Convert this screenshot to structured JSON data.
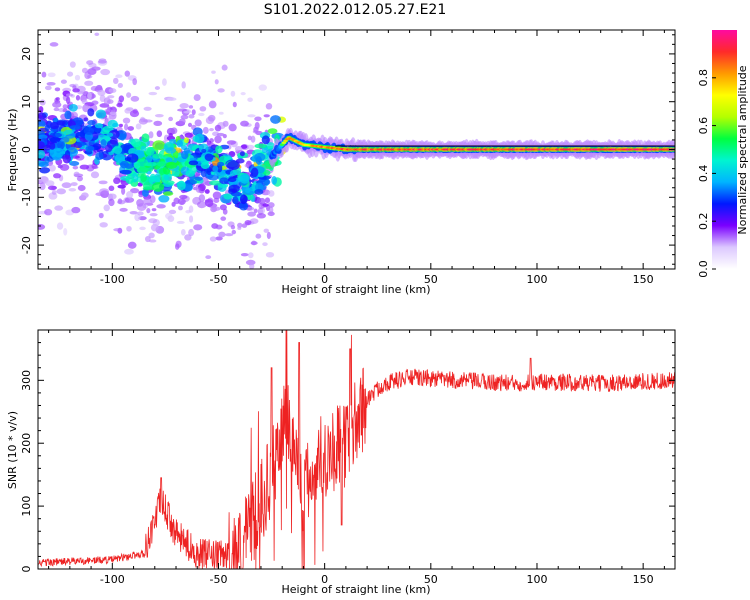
{
  "title": "S101.2022.012.05.27.E21",
  "chart_data": [
    {
      "type": "heatmap",
      "title": "",
      "xlabel": "Height of straight line (km)",
      "ylabel": "Frequency (Hz)",
      "xlim": [
        -135,
        165
      ],
      "ylim": [
        -25,
        25
      ],
      "xticks": [
        -100,
        -50,
        0,
        50,
        100,
        150
      ],
      "yticks": [
        -20,
        -10,
        0,
        10,
        20
      ],
      "colorbar": {
        "label": "Normalized spectral amplitude",
        "range": [
          0,
          1
        ],
        "ticks": [
          "0.0",
          "0.2",
          "0.4",
          "0.6",
          "0.8"
        ],
        "colors": [
          "#ffffff",
          "#dcc8ff",
          "#7a00ff",
          "#0018ff",
          "#00b4ff",
          "#00f5d0",
          "#00ff40",
          "#b4ff00",
          "#ffff00",
          "#ff9a00",
          "#ff2a2a",
          "#ff0aa0"
        ]
      },
      "features": {
        "noise_region_x": [
          -135,
          -25
        ],
        "noise_freq_spread_hz": [
          -20,
          20
        ],
        "ridge": [
          {
            "x": -135,
            "f": 1.5,
            "a": 0.35
          },
          {
            "x": -110,
            "f": 3.5,
            "a": 0.35
          },
          {
            "x": -90,
            "f": -2.0,
            "a": 0.45
          },
          {
            "x": -80,
            "f": -4.0,
            "a": 0.5
          },
          {
            "x": -70,
            "f": -3.0,
            "a": 0.5
          },
          {
            "x": -60,
            "f": -1.5,
            "a": 0.4
          },
          {
            "x": -45,
            "f": -5.0,
            "a": 0.4
          },
          {
            "x": -35,
            "f": -8.0,
            "a": 0.4
          },
          {
            "x": -28,
            "f": -3.0,
            "a": 0.45
          },
          {
            "x": -22,
            "f": 0.0,
            "a": 0.5
          },
          {
            "x": -17,
            "f": 2.5,
            "a": 0.9
          },
          {
            "x": -10,
            "f": 1.0,
            "a": 0.8
          },
          {
            "x": 0,
            "f": 0.5,
            "a": 0.9
          },
          {
            "x": 10,
            "f": 0.0,
            "a": 0.95
          },
          {
            "x": 165,
            "f": 0.0,
            "a": 1.0
          }
        ]
      }
    },
    {
      "type": "line",
      "title": "",
      "xlabel": "Height of straight line (km)",
      "ylabel": "SNR (10 * v/v)",
      "xlim": [
        -135,
        165
      ],
      "ylim": [
        0,
        380
      ],
      "xticks": [
        -100,
        -50,
        0,
        50,
        100,
        150
      ],
      "yticks": [
        0,
        100,
        200,
        300
      ],
      "series": [
        {
          "color": "#ee2222",
          "trend": [
            {
              "x": -135,
              "y": 10
            },
            {
              "x": -100,
              "y": 15
            },
            {
              "x": -85,
              "y": 25
            },
            {
              "x": -77,
              "y": 110
            },
            {
              "x": -70,
              "y": 55
            },
            {
              "x": -60,
              "y": 25
            },
            {
              "x": -50,
              "y": 20
            },
            {
              "x": -40,
              "y": 30
            },
            {
              "x": -32,
              "y": 90
            },
            {
              "x": -25,
              "y": 150
            },
            {
              "x": -18,
              "y": 250
            },
            {
              "x": -10,
              "y": 120
            },
            {
              "x": -2,
              "y": 180
            },
            {
              "x": 10,
              "y": 200
            },
            {
              "x": 15,
              "y": 235
            },
            {
              "x": 20,
              "y": 270
            },
            {
              "x": 28,
              "y": 295
            },
            {
              "x": 40,
              "y": 305
            },
            {
              "x": 60,
              "y": 300
            },
            {
              "x": 90,
              "y": 295
            },
            {
              "x": 100,
              "y": 298
            },
            {
              "x": 130,
              "y": 295
            },
            {
              "x": 165,
              "y": 300
            }
          ],
          "spikes": [
            {
              "x": -77,
              "y": 145
            },
            {
              "x": -18,
              "y": 380
            },
            {
              "x": -12,
              "y": 360
            },
            {
              "x": 12,
              "y": 350
            },
            {
              "x": 8,
              "y": 70
            },
            {
              "x": -25,
              "y": 320
            },
            {
              "x": 97,
              "y": 335
            }
          ]
        }
      ]
    }
  ]
}
